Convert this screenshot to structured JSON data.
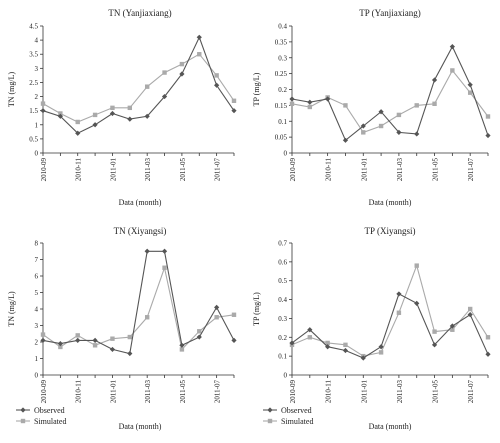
{
  "chart_data": [
    {
      "type": "line",
      "title": "TN (Yanjiaxiang)",
      "xlabel": "Data (month)",
      "ylabel": "TN (mg/L)",
      "ylim": [
        0,
        4.5
      ],
      "yticks": [
        "0",
        "0.5",
        "1",
        "1.5",
        "2",
        "2.5",
        "3",
        "3.5",
        "4",
        "4.5"
      ],
      "x": [
        "2010-09",
        "2010-10",
        "2010-11",
        "2010-12",
        "2011-01",
        "2011-02",
        "2011-03",
        "2011-04",
        "2011-05",
        "2011-06",
        "2011-07",
        "2011-08"
      ],
      "xtick_labels": [
        "2010-09",
        "2010-11",
        "2011-01",
        "2011-03",
        "2011-05",
        "2011-07"
      ],
      "series": [
        {
          "name": "Observed",
          "color": "#555555",
          "marker": "diamond",
          "values": [
            1.5,
            1.3,
            0.7,
            1.0,
            1.4,
            1.2,
            1.3,
            2.0,
            2.8,
            4.1,
            2.4,
            1.5
          ]
        },
        {
          "name": "Simulated",
          "color": "#aaaaaa",
          "marker": "square",
          "values": [
            1.75,
            1.4,
            1.1,
            1.35,
            1.6,
            1.6,
            2.35,
            2.85,
            3.15,
            3.5,
            2.75,
            1.85
          ]
        }
      ]
    },
    {
      "type": "line",
      "title": "TP (Yanjiaxiang)",
      "xlabel": "Data (month)",
      "ylabel": "TP (mg/L)",
      "ylim": [
        0,
        0.4
      ],
      "yticks": [
        "0",
        "0.05",
        "0.1",
        "0.15",
        "0.2",
        "0.25",
        "0.3",
        "0.35",
        "0.4"
      ],
      "x": [
        "2010-09",
        "2010-10",
        "2010-11",
        "2010-12",
        "2011-01",
        "2011-02",
        "2011-03",
        "2011-04",
        "2011-05",
        "2011-06",
        "2011-07",
        "2011-08"
      ],
      "xtick_labels": [
        "2010-09",
        "2010-11",
        "2011-01",
        "2011-03",
        "2011-05",
        "2011-07"
      ],
      "series": [
        {
          "name": "Observed",
          "color": "#555555",
          "marker": "diamond",
          "values": [
            0.17,
            0.16,
            0.17,
            0.04,
            0.085,
            0.13,
            0.065,
            0.06,
            0.23,
            0.335,
            0.215,
            0.055
          ]
        },
        {
          "name": "Simulated",
          "color": "#aaaaaa",
          "marker": "square",
          "values": [
            0.155,
            0.145,
            0.175,
            0.15,
            0.065,
            0.085,
            0.12,
            0.15,
            0.155,
            0.26,
            0.19,
            0.115
          ]
        }
      ]
    },
    {
      "type": "line",
      "title": "TN (Xiyangsi)",
      "xlabel": "Data (month)",
      "ylabel": "TN (mg/L)",
      "ylim": [
        0,
        8
      ],
      "yticks": [
        "0",
        "1",
        "2",
        "3",
        "4",
        "5",
        "6",
        "7",
        "8"
      ],
      "x": [
        "2010-09",
        "2010-10",
        "2010-11",
        "2010-12",
        "2011-01",
        "2011-02",
        "2011-03",
        "2011-04",
        "2011-05",
        "2011-06",
        "2011-07",
        "2011-08"
      ],
      "xtick_labels": [
        "2010-09",
        "2010-11",
        "2011-01",
        "2011-03",
        "2011-05",
        "2011-07"
      ],
      "series": [
        {
          "name": "Observed",
          "color": "#555555",
          "marker": "diamond",
          "values": [
            2.1,
            1.9,
            2.1,
            2.1,
            1.55,
            1.3,
            7.5,
            7.5,
            1.8,
            2.3,
            4.1,
            2.1
          ]
        },
        {
          "name": "Simulated",
          "color": "#aaaaaa",
          "marker": "square",
          "values": [
            2.45,
            1.7,
            2.4,
            1.8,
            2.2,
            2.3,
            3.5,
            6.5,
            1.55,
            2.65,
            3.5,
            3.65
          ]
        }
      ]
    },
    {
      "type": "line",
      "title": "TP (Xiyangsi)",
      "xlabel": "Data (month)",
      "ylabel": "TP (mg/L)",
      "ylim": [
        0,
        0.7
      ],
      "yticks": [
        "0",
        "0.1",
        "0.2",
        "0.3",
        "0.4",
        "0.5",
        "0.6",
        "0.7"
      ],
      "x": [
        "2010-09",
        "2010-10",
        "2010-11",
        "2010-12",
        "2011-01",
        "2011-02",
        "2011-03",
        "2011-04",
        "2011-05",
        "2011-06",
        "2011-07",
        "2011-08"
      ],
      "xtick_labels": [
        "2010-09",
        "2010-11",
        "2011-01",
        "2011-03",
        "2011-05",
        "2011-07"
      ],
      "series": [
        {
          "name": "Observed",
          "color": "#555555",
          "marker": "diamond",
          "values": [
            0.17,
            0.24,
            0.15,
            0.13,
            0.09,
            0.15,
            0.43,
            0.38,
            0.16,
            0.26,
            0.32,
            0.11
          ]
        },
        {
          "name": "Simulated",
          "color": "#aaaaaa",
          "marker": "square",
          "values": [
            0.16,
            0.2,
            0.17,
            0.16,
            0.1,
            0.12,
            0.33,
            0.58,
            0.23,
            0.24,
            0.35,
            0.2
          ]
        }
      ]
    }
  ],
  "legends": [
    {
      "observed": "Observed",
      "simulated": "Simulated"
    },
    {
      "observed": "Observed",
      "simulated": "Simulated"
    }
  ]
}
